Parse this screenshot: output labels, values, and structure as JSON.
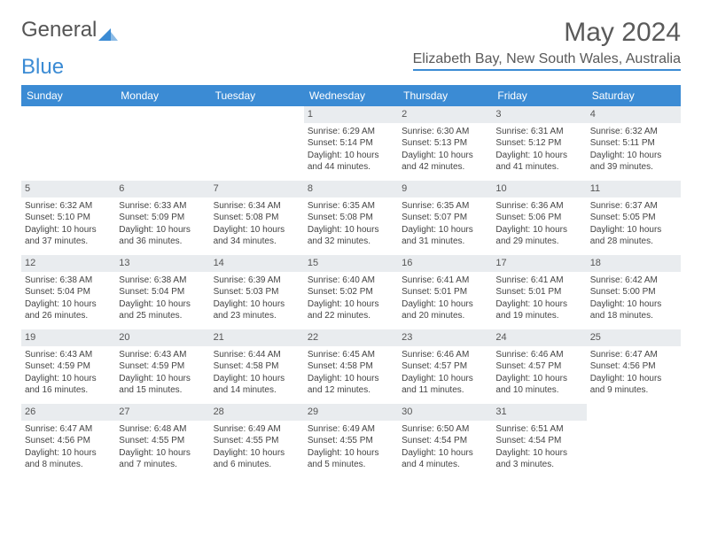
{
  "brand": {
    "part1": "General",
    "part2": "Blue"
  },
  "title": "May 2024",
  "location": "Elizabeth Bay, New South Wales, Australia",
  "colors": {
    "header_bg": "#3b8bd4",
    "daynum_bg": "#e9ecef",
    "text": "#444444",
    "title_color": "#5a5a5a"
  },
  "weekdays": [
    "Sunday",
    "Monday",
    "Tuesday",
    "Wednesday",
    "Thursday",
    "Friday",
    "Saturday"
  ],
  "weeks": [
    [
      null,
      null,
      null,
      {
        "n": "1",
        "sr": "6:29 AM",
        "ss": "5:14 PM",
        "dl": "10 hours and 44 minutes."
      },
      {
        "n": "2",
        "sr": "6:30 AM",
        "ss": "5:13 PM",
        "dl": "10 hours and 42 minutes."
      },
      {
        "n": "3",
        "sr": "6:31 AM",
        "ss": "5:12 PM",
        "dl": "10 hours and 41 minutes."
      },
      {
        "n": "4",
        "sr": "6:32 AM",
        "ss": "5:11 PM",
        "dl": "10 hours and 39 minutes."
      }
    ],
    [
      {
        "n": "5",
        "sr": "6:32 AM",
        "ss": "5:10 PM",
        "dl": "10 hours and 37 minutes."
      },
      {
        "n": "6",
        "sr": "6:33 AM",
        "ss": "5:09 PM",
        "dl": "10 hours and 36 minutes."
      },
      {
        "n": "7",
        "sr": "6:34 AM",
        "ss": "5:08 PM",
        "dl": "10 hours and 34 minutes."
      },
      {
        "n": "8",
        "sr": "6:35 AM",
        "ss": "5:08 PM",
        "dl": "10 hours and 32 minutes."
      },
      {
        "n": "9",
        "sr": "6:35 AM",
        "ss": "5:07 PM",
        "dl": "10 hours and 31 minutes."
      },
      {
        "n": "10",
        "sr": "6:36 AM",
        "ss": "5:06 PM",
        "dl": "10 hours and 29 minutes."
      },
      {
        "n": "11",
        "sr": "6:37 AM",
        "ss": "5:05 PM",
        "dl": "10 hours and 28 minutes."
      }
    ],
    [
      {
        "n": "12",
        "sr": "6:38 AM",
        "ss": "5:04 PM",
        "dl": "10 hours and 26 minutes."
      },
      {
        "n": "13",
        "sr": "6:38 AM",
        "ss": "5:04 PM",
        "dl": "10 hours and 25 minutes."
      },
      {
        "n": "14",
        "sr": "6:39 AM",
        "ss": "5:03 PM",
        "dl": "10 hours and 23 minutes."
      },
      {
        "n": "15",
        "sr": "6:40 AM",
        "ss": "5:02 PM",
        "dl": "10 hours and 22 minutes."
      },
      {
        "n": "16",
        "sr": "6:41 AM",
        "ss": "5:01 PM",
        "dl": "10 hours and 20 minutes."
      },
      {
        "n": "17",
        "sr": "6:41 AM",
        "ss": "5:01 PM",
        "dl": "10 hours and 19 minutes."
      },
      {
        "n": "18",
        "sr": "6:42 AM",
        "ss": "5:00 PM",
        "dl": "10 hours and 18 minutes."
      }
    ],
    [
      {
        "n": "19",
        "sr": "6:43 AM",
        "ss": "4:59 PM",
        "dl": "10 hours and 16 minutes."
      },
      {
        "n": "20",
        "sr": "6:43 AM",
        "ss": "4:59 PM",
        "dl": "10 hours and 15 minutes."
      },
      {
        "n": "21",
        "sr": "6:44 AM",
        "ss": "4:58 PM",
        "dl": "10 hours and 14 minutes."
      },
      {
        "n": "22",
        "sr": "6:45 AM",
        "ss": "4:58 PM",
        "dl": "10 hours and 12 minutes."
      },
      {
        "n": "23",
        "sr": "6:46 AM",
        "ss": "4:57 PM",
        "dl": "10 hours and 11 minutes."
      },
      {
        "n": "24",
        "sr": "6:46 AM",
        "ss": "4:57 PM",
        "dl": "10 hours and 10 minutes."
      },
      {
        "n": "25",
        "sr": "6:47 AM",
        "ss": "4:56 PM",
        "dl": "10 hours and 9 minutes."
      }
    ],
    [
      {
        "n": "26",
        "sr": "6:47 AM",
        "ss": "4:56 PM",
        "dl": "10 hours and 8 minutes."
      },
      {
        "n": "27",
        "sr": "6:48 AM",
        "ss": "4:55 PM",
        "dl": "10 hours and 7 minutes."
      },
      {
        "n": "28",
        "sr": "6:49 AM",
        "ss": "4:55 PM",
        "dl": "10 hours and 6 minutes."
      },
      {
        "n": "29",
        "sr": "6:49 AM",
        "ss": "4:55 PM",
        "dl": "10 hours and 5 minutes."
      },
      {
        "n": "30",
        "sr": "6:50 AM",
        "ss": "4:54 PM",
        "dl": "10 hours and 4 minutes."
      },
      {
        "n": "31",
        "sr": "6:51 AM",
        "ss": "4:54 PM",
        "dl": "10 hours and 3 minutes."
      },
      null
    ]
  ],
  "labels": {
    "sunrise": "Sunrise: ",
    "sunset": "Sunset: ",
    "daylight": "Daylight: "
  }
}
